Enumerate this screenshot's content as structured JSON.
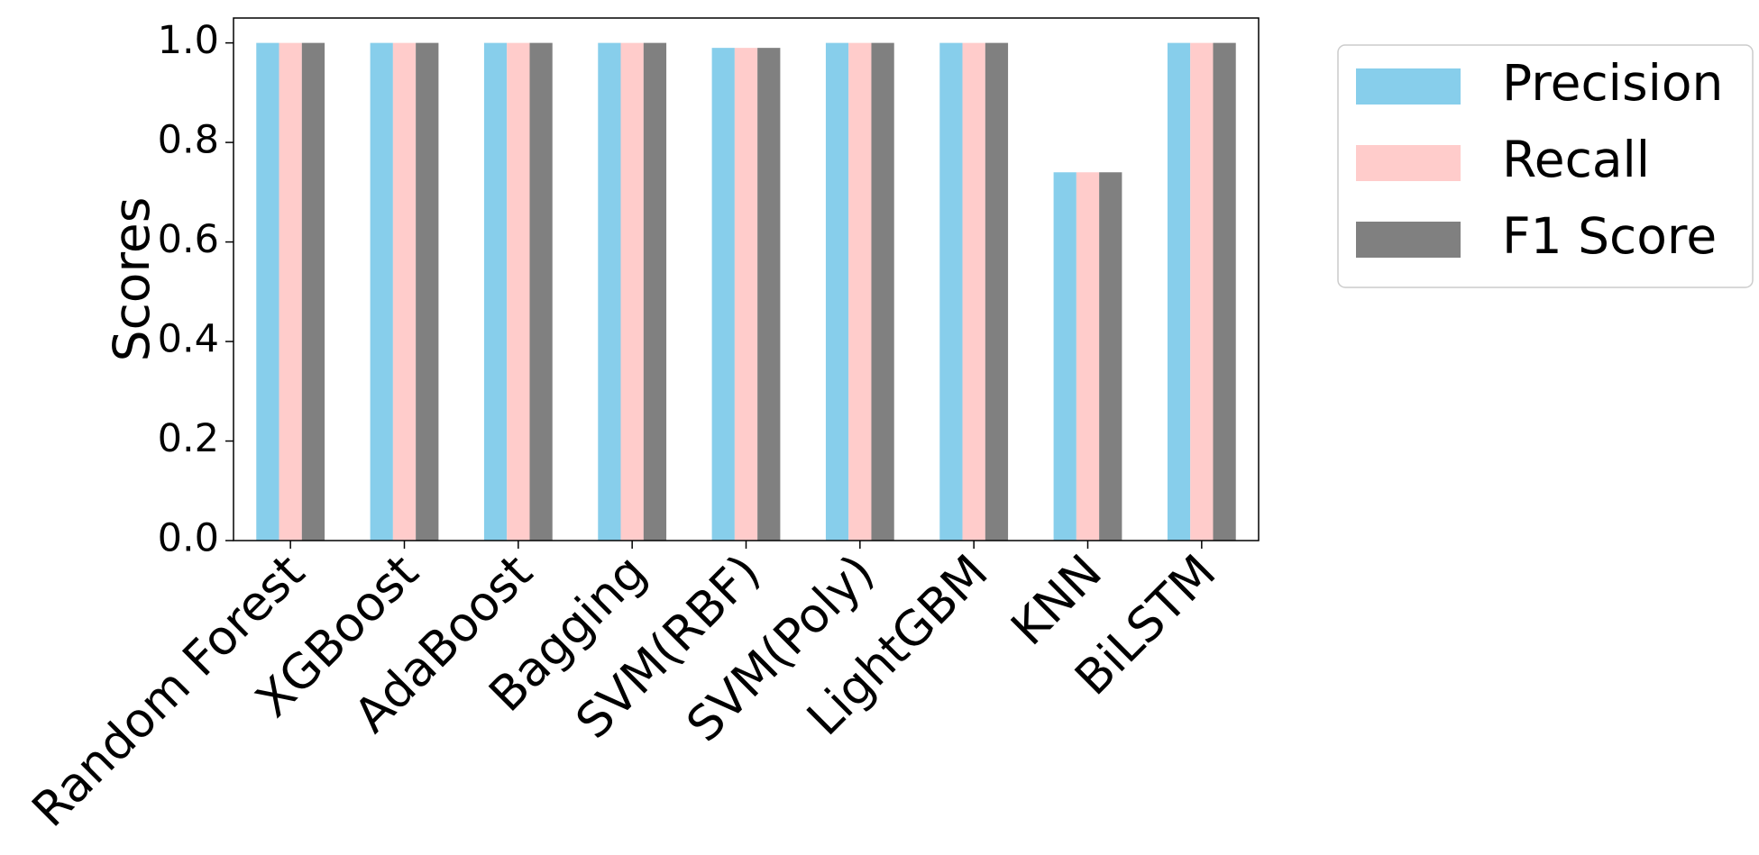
{
  "chart_data": {
    "type": "bar",
    "y_label": "Scores",
    "categories": [
      "Random Forest",
      "XGBoost",
      "AdaBoost",
      "Bagging",
      "SVM(RBF)",
      "SVM(Poly)",
      "LightGBM",
      "KNN",
      "BiLSTM"
    ],
    "series": [
      {
        "name": "Precision",
        "color": "#87ceeb",
        "values": [
          1.0,
          1.0,
          1.0,
          1.0,
          0.99,
          1.0,
          1.0,
          0.74,
          1.0
        ]
      },
      {
        "name": "Recall",
        "color": "#ffcccb",
        "values": [
          1.0,
          1.0,
          1.0,
          1.0,
          0.99,
          1.0,
          1.0,
          0.74,
          1.0
        ]
      },
      {
        "name": "F1 Score",
        "color": "#808080",
        "values": [
          1.0,
          1.0,
          1.0,
          1.0,
          0.99,
          1.0,
          1.0,
          0.74,
          1.0
        ]
      }
    ],
    "ylim": [
      0,
      1.05
    ],
    "yticks": [
      {
        "value": 0,
        "label": "0.0"
      },
      {
        "value": 0.2,
        "label": "0.2"
      },
      {
        "value": 0.4,
        "label": "0.4"
      },
      {
        "value": 0.6,
        "label": "0.6"
      },
      {
        "value": 0.8,
        "label": "0.8"
      },
      {
        "value": 1.0,
        "label": "1.0"
      }
    ],
    "legend": "outside-upper-right"
  }
}
